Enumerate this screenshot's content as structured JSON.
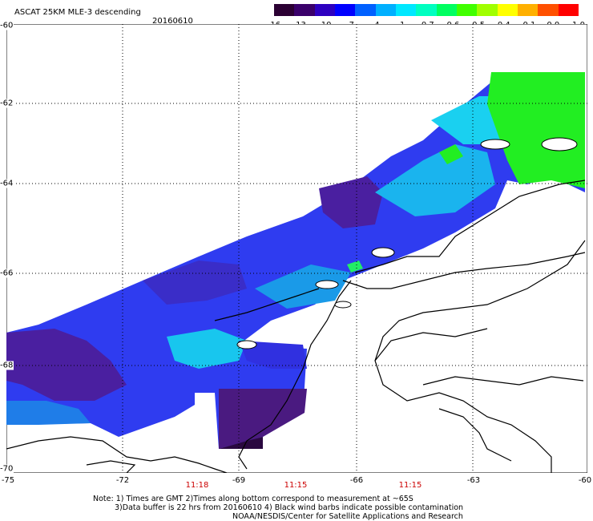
{
  "header": {
    "title": "ASCAT 25KM MLE-3 descending",
    "date": "20160610"
  },
  "colorbar": {
    "colors": [
      "#2b0033",
      "#3a006a",
      "#2d00c0",
      "#0000ff",
      "#0060ff",
      "#00b0ff",
      "#00e8ff",
      "#00ffc0",
      "#00ff60",
      "#40ff00",
      "#a0ff00",
      "#ffff00",
      "#ffb000",
      "#ff5000",
      "#ff0000"
    ],
    "tick_labels": [
      "-16",
      "-13",
      "-10",
      "-7",
      "-4",
      "-1",
      "-0.7",
      "-0.6",
      "-0.5",
      "-0.4",
      "-0.1",
      "0.0",
      "1.0"
    ]
  },
  "axes": {
    "lat_labels": [
      "-60",
      "-62",
      "-64",
      "-66",
      "-68",
      "-70"
    ],
    "lon_labels": [
      "-75",
      "-72",
      "-69",
      "-66",
      "-63",
      "-60"
    ]
  },
  "times": [
    "11:18",
    "11:15",
    "11:15"
  ],
  "notes": {
    "line1": "Note: 1) Times are GMT 2)Times along bottom correspond to measurement at ~65S",
    "line2": "3)Data buffer is 22 hrs from 20160610 4) Black wind barbs indicate possible contamination",
    "line3": "NOAA/NESDIS/Center for Satellite Applications and Research"
  }
}
